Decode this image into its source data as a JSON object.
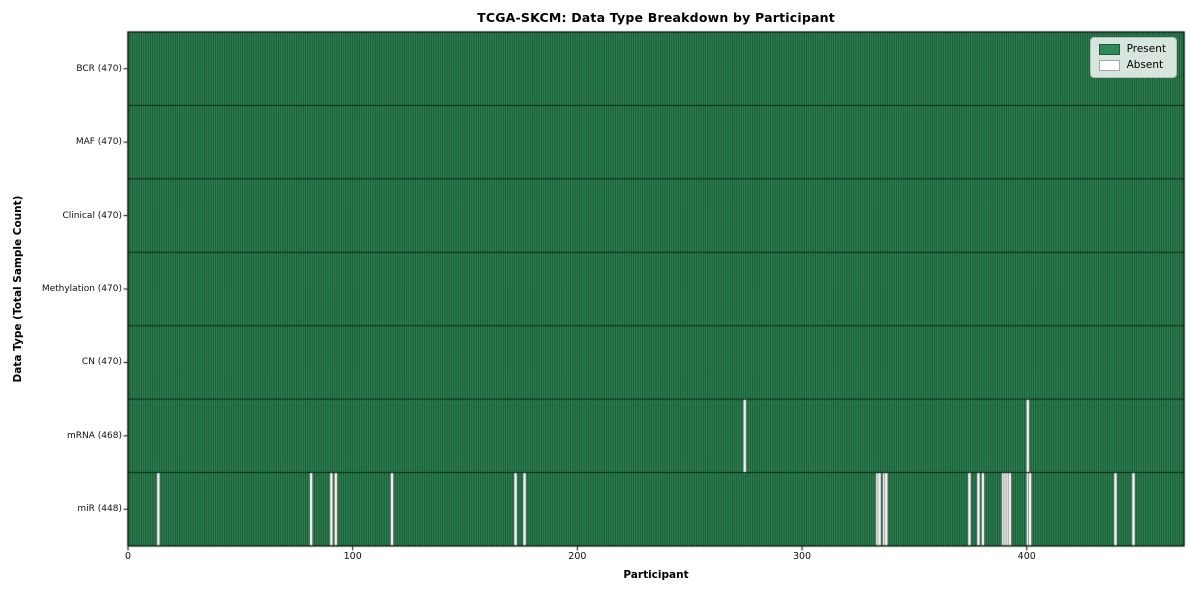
{
  "chart_data": {
    "type": "heatmap",
    "title": "TCGA-SKCM: Data Type Breakdown by Participant",
    "xlabel": "Participant",
    "ylabel": "Data Type (Total Sample Count)",
    "n_participants": 470,
    "x_ticks": [
      0,
      100,
      200,
      300,
      400
    ],
    "grid": false,
    "legend_position": "upper right",
    "rows": [
      {
        "label": "BCR (470)",
        "data_type": "BCR",
        "present_count": 470,
        "absent_participants": []
      },
      {
        "label": "MAF (470)",
        "data_type": "MAF",
        "present_count": 470,
        "absent_participants": []
      },
      {
        "label": "Clinical (470)",
        "data_type": "Clinical",
        "present_count": 470,
        "absent_participants": []
      },
      {
        "label": "Methylation (470)",
        "data_type": "Methylation",
        "present_count": 470,
        "absent_participants": []
      },
      {
        "label": "CN (470)",
        "data_type": "CN",
        "present_count": 470,
        "absent_participants": []
      },
      {
        "label": "mRNA (468)",
        "data_type": "mRNA",
        "present_count": 468,
        "absent_participants": [
          274,
          400
        ]
      },
      {
        "label": "miR (448)",
        "data_type": "miR",
        "present_count": 448,
        "absent_participants": [
          13,
          81,
          90,
          92,
          117,
          172,
          176,
          333,
          334,
          336,
          337,
          374,
          378,
          380,
          389,
          390,
          391,
          392,
          400,
          401,
          439,
          447
        ]
      }
    ],
    "colors": {
      "present": "#2e8b57",
      "absent": "#ffffff",
      "bar_edge": "rgba(0,0,0,0.55)",
      "row_divider": "rgba(0,0,0,0.75)",
      "spine": "#000000"
    },
    "legend": [
      {
        "label": "Present",
        "color": "#2e8b57"
      },
      {
        "label": "Absent",
        "color": "#ffffff"
      }
    ]
  }
}
